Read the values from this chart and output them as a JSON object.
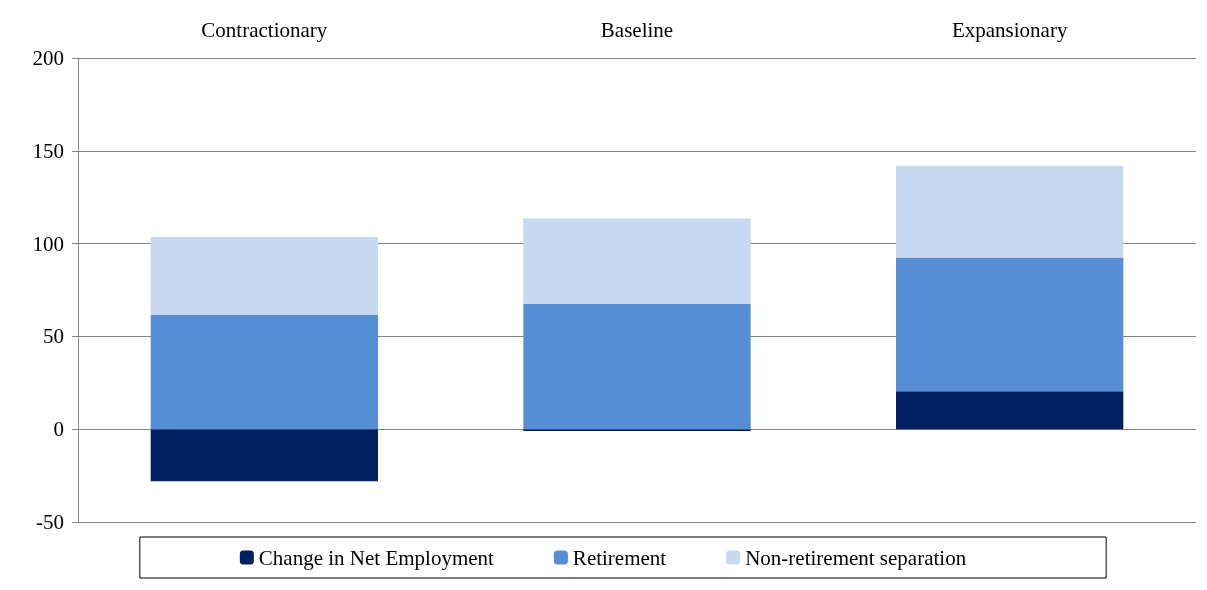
{
  "chart_data": {
    "type": "bar",
    "stacked": true,
    "categories": [
      "Contractionary",
      "Baseline",
      "Expansionary"
    ],
    "series": [
      {
        "name": "Change in Net Employment",
        "color": "#002060",
        "values": [
          -28,
          -1,
          20.5
        ]
      },
      {
        "name": "Retirement",
        "color": "#558ed5",
        "values": [
          61.5,
          67.5,
          72
        ]
      },
      {
        "name": "Non-retirement separation",
        "color": "#c6d9f1",
        "values": [
          42,
          46,
          49.5
        ]
      }
    ],
    "ylim": [
      -50,
      200
    ],
    "yticks": [
      -50,
      0,
      50,
      100,
      150,
      200
    ],
    "grid": "y",
    "legend": "bottom"
  }
}
